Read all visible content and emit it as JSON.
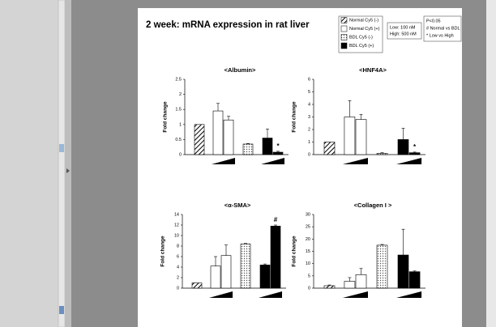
{
  "title": "2 week: mRNA expression in rat liver",
  "legend": [
    {
      "name": "Normal Cy5 (-)",
      "style": "hatch"
    },
    {
      "name": "Normal Cy5 (+)",
      "style": "white"
    },
    {
      "name": "BDL Cy5 (-)",
      "style": "dots"
    },
    {
      "name": "BDL Cy5 (+)",
      "style": "black"
    }
  ],
  "bar_styles": [
    "hatch",
    "white",
    "white",
    "dots",
    "black",
    "black"
  ],
  "conc_note": [
    "Low: 100 nM",
    "High: 500 nM"
  ],
  "sig_note": [
    "P<0.05",
    "# Normal vs BDL",
    "* Low vs High"
  ],
  "chart_data": [
    {
      "type": "bar",
      "title": "<Albumin>",
      "ylabel": "Fold change",
      "values": [
        1.0,
        1.45,
        1.15,
        0.35,
        0.55,
        0.08
      ],
      "errors": [
        0,
        0.25,
        0.12,
        0.02,
        0.3,
        0.03
      ],
      "ylim": [
        0,
        2.5
      ],
      "yticks": [
        0,
        0.5,
        1,
        1.5,
        2,
        2.5
      ],
      "annotations": [
        {
          "text": "*",
          "bar": 5
        }
      ]
    },
    {
      "type": "bar",
      "title": "<HNF4A>",
      "ylabel": "Fold change",
      "values": [
        1.0,
        3.0,
        2.8,
        0.1,
        1.2,
        0.15
      ],
      "errors": [
        0,
        1.3,
        0.4,
        0.05,
        0.9,
        0.05
      ],
      "ylim": [
        0,
        6
      ],
      "yticks": [
        0,
        1,
        2,
        3,
        4,
        5,
        6
      ],
      "annotations": [
        {
          "text": "*",
          "bar": 5
        }
      ]
    },
    {
      "type": "bar",
      "title": "<α-SMA>",
      "ylabel": "Fold change",
      "values": [
        1.0,
        4.2,
        6.2,
        8.4,
        4.4,
        11.8
      ],
      "errors": [
        0,
        1.8,
        2.0,
        0.1,
        0.2,
        0.2
      ],
      "ylim": [
        0,
        14
      ],
      "yticks": [
        0,
        2,
        4,
        6,
        8,
        10,
        12,
        14
      ],
      "annotations": [
        {
          "text": "#",
          "bar": 5
        }
      ]
    },
    {
      "type": "bar",
      "title": "<Collagen I >",
      "ylabel": "Fold change",
      "values": [
        1.0,
        2.8,
        5.5,
        17.5,
        13.5,
        6.7
      ],
      "errors": [
        0.3,
        1.5,
        2.5,
        0.3,
        10.5,
        0.3
      ],
      "ylim": [
        0,
        30
      ],
      "yticks": [
        0,
        5,
        10,
        15,
        20,
        25,
        30
      ],
      "annotations": []
    }
  ]
}
